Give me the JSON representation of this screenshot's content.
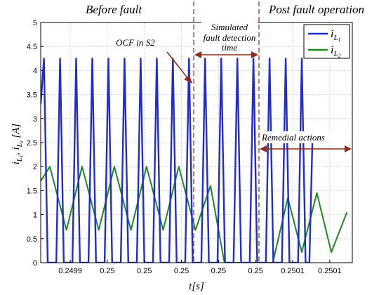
{
  "chart_data": {
    "type": "line",
    "xlabel": "t[s]",
    "ylabel": "i_L1, i_L2 [A]",
    "ylim": [
      0,
      5
    ],
    "yticks": [
      "0",
      "0.5",
      "1",
      "1.5",
      "2",
      "2.5",
      "3",
      "3.5",
      "4",
      "4.5",
      "5"
    ],
    "xtick_labels": [
      "0.2499",
      "0.25",
      "0.25",
      "0.25",
      "0.25",
      "0.25",
      "0.2501",
      "0.2501"
    ],
    "grid": true,
    "legend_position": "top-right",
    "region_labels": {
      "before": "Before fault",
      "after": "Post fault operation"
    },
    "annotations": {
      "fault": "OCF in S2",
      "detection_line1": "Simulated",
      "detection_line2": "fault detection",
      "detection_line3": "time",
      "remedial": "Remedial actions"
    },
    "colors": {
      "iL1": "#1f2bd6",
      "iL2": "#1a8a1a",
      "markers": "#8b2a1e",
      "grid": "#c8c8c8"
    },
    "series": [
      {
        "name": "i_L1",
        "points": [
          [
            0,
            3.3
          ],
          [
            0.6,
            4.25
          ],
          [
            1.3,
            0
          ],
          [
            2.9,
            0
          ],
          [
            3.6,
            4.25
          ],
          [
            4.3,
            0
          ],
          [
            5.9,
            0
          ],
          [
            6.6,
            4.25
          ],
          [
            7.3,
            0
          ],
          [
            8.9,
            0
          ],
          [
            9.6,
            4.25
          ],
          [
            10.3,
            0
          ],
          [
            11.9,
            0
          ],
          [
            12.6,
            4.25
          ],
          [
            13.3,
            0
          ],
          [
            14.9,
            0
          ],
          [
            15.6,
            4.25
          ],
          [
            16.3,
            0
          ],
          [
            17.9,
            0
          ],
          [
            18.6,
            4.25
          ],
          [
            19.3,
            0
          ],
          [
            20.9,
            0
          ],
          [
            21.6,
            4.25
          ],
          [
            22.3,
            0
          ],
          [
            23.9,
            0
          ],
          [
            24.6,
            4.25
          ],
          [
            25.3,
            0
          ],
          [
            26.9,
            0
          ],
          [
            27.6,
            4.25
          ],
          [
            28.3,
            0
          ],
          [
            29.9,
            0
          ],
          [
            30.6,
            4.25
          ],
          [
            31.3,
            0
          ],
          [
            32.9,
            0
          ],
          [
            33.6,
            4.25
          ],
          [
            34.3,
            0
          ],
          [
            35.9,
            0
          ],
          [
            36.6,
            4.25
          ],
          [
            37.3,
            0
          ],
          [
            38.9,
            0
          ],
          [
            39.6,
            4.25
          ],
          [
            40.3,
            0
          ],
          [
            41.9,
            0
          ],
          [
            42.6,
            4.25
          ],
          [
            43.3,
            0
          ],
          [
            44.9,
            0
          ],
          [
            45.6,
            4.25
          ],
          [
            46.3,
            0
          ],
          [
            47.9,
            0
          ],
          [
            48.6,
            4.25
          ],
          [
            49.3,
            0
          ],
          [
            50,
            0
          ],
          [
            50.6,
            2.7
          ]
        ]
      },
      {
        "name": "i_L2",
        "points": [
          [
            0,
            1.7
          ],
          [
            1.7,
            2.0
          ],
          [
            4.8,
            0.68
          ],
          [
            7.7,
            2.0
          ],
          [
            10.8,
            0.68
          ],
          [
            13.7,
            2.0
          ],
          [
            16.8,
            0.68
          ],
          [
            19.7,
            2.0
          ],
          [
            22.8,
            0.68
          ],
          [
            25.7,
            2.0
          ],
          [
            28.8,
            0.68
          ],
          [
            31.6,
            1.6
          ],
          [
            34.2,
            0.0
          ],
          [
            43.2,
            0.0
          ],
          [
            46.0,
            1.35
          ],
          [
            48.6,
            0.22
          ],
          [
            51.4,
            1.45
          ],
          [
            54.1,
            0.22
          ],
          [
            57.0,
            1.05
          ]
        ]
      }
    ]
  }
}
